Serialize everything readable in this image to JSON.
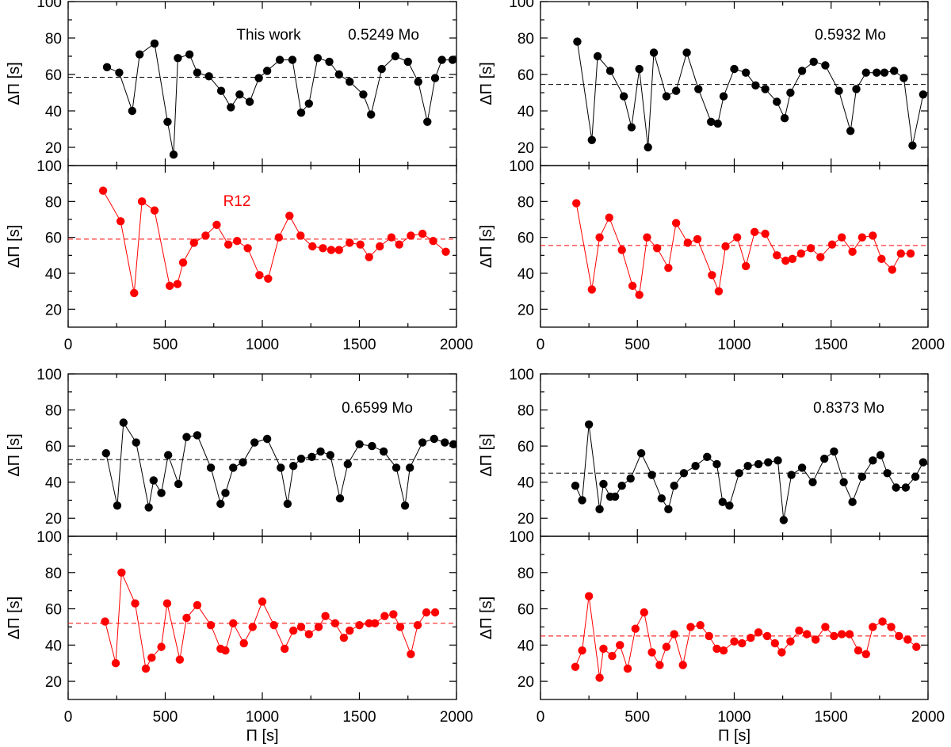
{
  "chart_data": {
    "type": "line",
    "layout": "2x2 groups, each group has two stacked panels sharing x axis",
    "xlabel": "Π [s]",
    "ylabel": "ΔΠ [s]",
    "xlim": [
      0,
      2000
    ],
    "ylim": [
      10,
      100
    ],
    "xticks": [
      0,
      500,
      1000,
      1500,
      2000
    ],
    "yticks": [
      20,
      40,
      60,
      80,
      100
    ],
    "colors": {
      "this_work": "#000000",
      "r12": "#ff0000",
      "frame": "#000000",
      "background": "#ffffff"
    },
    "panels": [
      {
        "id": "tl-top",
        "series": "This work",
        "color": "#000000",
        "labels": [
          "This work",
          "0.5249 Mo"
        ],
        "mean": 58.5,
        "x": [
          200,
          263,
          330,
          368,
          445,
          512,
          543,
          565,
          625,
          665,
          725,
          788,
          838,
          883,
          935,
          982,
          1025,
          1090,
          1155,
          1200,
          1240,
          1285,
          1345,
          1395,
          1450,
          1520,
          1560,
          1615,
          1685,
          1750,
          1803,
          1850,
          1890,
          1925,
          1980
        ],
        "y": [
          64,
          61,
          40,
          71,
          77,
          34,
          16,
          69,
          71,
          61,
          59,
          51,
          42,
          49,
          45,
          58,
          62,
          68,
          68,
          39,
          44,
          69,
          67,
          60,
          56,
          49,
          38,
          63,
          70,
          67,
          56,
          34,
          58,
          68,
          68
        ]
      },
      {
        "id": "tl-bottom",
        "series": "R12",
        "color": "#ff0000",
        "labels": [
          "R12"
        ],
        "mean": 59,
        "x": [
          180,
          270,
          340,
          380,
          445,
          523,
          563,
          592,
          648,
          708,
          765,
          825,
          870,
          925,
          985,
          1030,
          1085,
          1140,
          1197,
          1258,
          1312,
          1355,
          1395,
          1450,
          1505,
          1550,
          1605,
          1665,
          1705,
          1765,
          1825,
          1880,
          1945
        ],
        "y": [
          86,
          69,
          29,
          80,
          75,
          33,
          34,
          46,
          57,
          61,
          67,
          56,
          58,
          54,
          39,
          37,
          60,
          72,
          61,
          55,
          54,
          53,
          53,
          57,
          56,
          49,
          55,
          60,
          56,
          61,
          62,
          58,
          52
        ]
      },
      {
        "id": "tr-top",
        "series": "This work",
        "color": "#000000",
        "labels": [
          "0.5932 Mo"
        ],
        "mean": 54.5,
        "x": [
          190,
          265,
          295,
          360,
          430,
          470,
          510,
          555,
          585,
          650,
          700,
          755,
          815,
          880,
          915,
          945,
          1000,
          1060,
          1110,
          1160,
          1220,
          1260,
          1290,
          1350,
          1410,
          1470,
          1540,
          1600,
          1630,
          1680,
          1735,
          1775,
          1825,
          1875,
          1920,
          1975
        ],
        "y": [
          78,
          24,
          70,
          62,
          48,
          31,
          63,
          20,
          72,
          48,
          51,
          72,
          52,
          34,
          33,
          48,
          63,
          61,
          54,
          52,
          45,
          36,
          50,
          62,
          67,
          65,
          51,
          29,
          52,
          61,
          61,
          61,
          62,
          58,
          21,
          49
        ]
      },
      {
        "id": "tr-bottom",
        "series": "R12",
        "color": "#ff0000",
        "labels": [],
        "mean": 55.5,
        "x": [
          185,
          265,
          305,
          355,
          420,
          475,
          510,
          550,
          602,
          660,
          700,
          760,
          810,
          885,
          920,
          955,
          1015,
          1060,
          1105,
          1160,
          1220,
          1265,
          1300,
          1345,
          1395,
          1445,
          1505,
          1555,
          1610,
          1660,
          1715,
          1760,
          1815,
          1860,
          1910
        ],
        "y": [
          79,
          31,
          60,
          71,
          53,
          33,
          28,
          60,
          54,
          43,
          68,
          57,
          59,
          39,
          30,
          55,
          60,
          44,
          63,
          62,
          50,
          47,
          48,
          51,
          54,
          49,
          56,
          60,
          52,
          60,
          61,
          48,
          42,
          51,
          51
        ]
      },
      {
        "id": "bl-top",
        "series": "This work",
        "color": "#000000",
        "labels": [
          "0.6599 Mo"
        ],
        "mean": 52.5,
        "x": [
          195,
          253,
          285,
          350,
          415,
          440,
          480,
          515,
          568,
          610,
          665,
          735,
          785,
          810,
          850,
          900,
          960,
          1025,
          1095,
          1130,
          1160,
          1200,
          1255,
          1300,
          1350,
          1400,
          1440,
          1500,
          1565,
          1625,
          1690,
          1735,
          1760,
          1825,
          1885,
          1940,
          1985
        ],
        "y": [
          56,
          27,
          73,
          62,
          26,
          41,
          34,
          55,
          39,
          65,
          66,
          48,
          28,
          34,
          48,
          51,
          62,
          64,
          48,
          28,
          49,
          53,
          54,
          57,
          55,
          31,
          50,
          61,
          60,
          57,
          48,
          27,
          48,
          62,
          64,
          62,
          61
        ]
      },
      {
        "id": "bl-bottom",
        "series": "R12",
        "color": "#ff0000",
        "labels": [],
        "mean": 52,
        "x": [
          190,
          245,
          275,
          345,
          400,
          430,
          480,
          510,
          575,
          610,
          665,
          735,
          785,
          810,
          850,
          905,
          950,
          1000,
          1060,
          1115,
          1160,
          1200,
          1240,
          1290,
          1325,
          1375,
          1420,
          1450,
          1500,
          1550,
          1580,
          1630,
          1675,
          1710,
          1765,
          1800,
          1845,
          1890
        ],
        "y": [
          53,
          30,
          80,
          63,
          27,
          33,
          39,
          63,
          32,
          55,
          62,
          51,
          38,
          37,
          52,
          41,
          50,
          64,
          51,
          38,
          48,
          50,
          46,
          50,
          56,
          52,
          44,
          48,
          51,
          52,
          52,
          56,
          57,
          50,
          35,
          51,
          58,
          58
        ]
      },
      {
        "id": "br-top",
        "series": "This work",
        "color": "#000000",
        "labels": [
          "0.8373 Mo"
        ],
        "mean": 45,
        "x": [
          180,
          215,
          250,
          305,
          325,
          360,
          385,
          420,
          465,
          520,
          575,
          625,
          660,
          690,
          740,
          800,
          860,
          910,
          940,
          975,
          1025,
          1070,
          1125,
          1175,
          1225,
          1255,
          1295,
          1350,
          1405,
          1465,
          1515,
          1565,
          1610,
          1660,
          1715,
          1755,
          1790,
          1835,
          1885,
          1935,
          1975
        ],
        "y": [
          38,
          30,
          72,
          25,
          39,
          32,
          32,
          38,
          42,
          56,
          44,
          31,
          25,
          38,
          45,
          49,
          54,
          50,
          29,
          27,
          45,
          49,
          50,
          51,
          52,
          19,
          44,
          48,
          40,
          53,
          57,
          40,
          29,
          43,
          52,
          55,
          45,
          37,
          37,
          43,
          51
        ]
      },
      {
        "id": "br-bottom",
        "series": "R12",
        "color": "#ff0000",
        "labels": [],
        "mean": 45,
        "x": [
          180,
          215,
          250,
          305,
          325,
          370,
          410,
          450,
          490,
          535,
          575,
          615,
          650,
          690,
          735,
          775,
          825,
          870,
          910,
          945,
          1000,
          1040,
          1085,
          1125,
          1170,
          1210,
          1245,
          1290,
          1335,
          1375,
          1420,
          1470,
          1515,
          1555,
          1595,
          1640,
          1680,
          1715,
          1765,
          1810,
          1850,
          1895,
          1940
        ],
        "y": [
          28,
          37,
          67,
          22,
          38,
          34,
          40,
          27,
          49,
          58,
          36,
          29,
          39,
          46,
          29,
          50,
          51,
          45,
          38,
          37,
          42,
          41,
          44,
          47,
          45,
          41,
          36,
          42,
          48,
          46,
          43,
          50,
          45,
          46,
          46,
          37,
          35,
          50,
          53,
          50,
          45,
          43,
          39
        ]
      }
    ]
  }
}
